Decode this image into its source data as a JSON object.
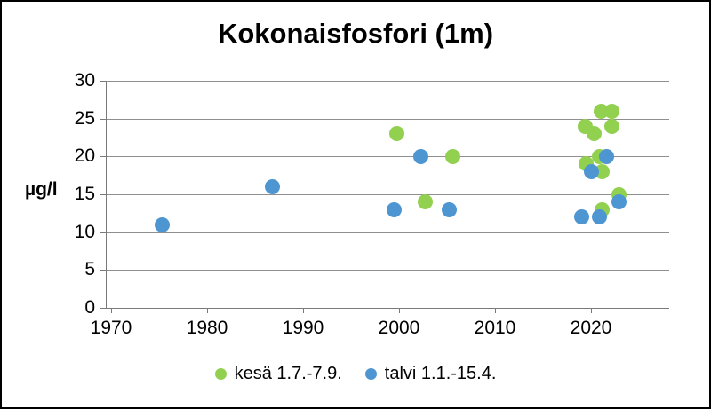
{
  "title": "Kokonaisfosfori (1m)",
  "y_axis": {
    "label": "µg/l",
    "ticks": [
      0,
      5,
      10,
      15,
      20,
      25,
      30
    ]
  },
  "x_axis": {
    "ticks": [
      1970,
      1980,
      1990,
      2000,
      2010,
      2020
    ]
  },
  "legend": {
    "items": [
      {
        "label": "kesä 1.7.-7.9.",
        "color": "#92D050"
      },
      {
        "label": "talvi 1.1.-15.4.",
        "color": "#4D96D2"
      }
    ]
  },
  "colors": {
    "grid": "#8f8f8f",
    "axis": "#7a7a7a",
    "text": "#000000",
    "background": "#ffffff",
    "border": "#000000"
  },
  "chart_data": {
    "type": "scatter",
    "title": "Kokonaisfosfori (1m)",
    "xlabel": "",
    "ylabel": "µg/l",
    "xlim": [
      1969.4,
      2028.7
    ],
    "ylim": [
      0,
      30
    ],
    "grid": true,
    "legend_position": "bottom",
    "marker_px": 17,
    "series": [
      {
        "name": "kesä 1.7.-7.9.",
        "color": "#92D050",
        "points": [
          [
            1999.8,
            23
          ],
          [
            2002.7,
            14
          ],
          [
            2005.6,
            20
          ],
          [
            2019.4,
            24
          ],
          [
            2019.5,
            19
          ],
          [
            2020.3,
            23
          ],
          [
            2020.9,
            20
          ],
          [
            2021.1,
            26
          ],
          [
            2021.2,
            18
          ],
          [
            2021.2,
            13
          ],
          [
            2022.2,
            26
          ],
          [
            2022.2,
            24
          ],
          [
            2022.9,
            15
          ]
        ]
      },
      {
        "name": "talvi 1.1.-15.4.",
        "color": "#4D96D2",
        "points": [
          [
            1975.3,
            11
          ],
          [
            1986.8,
            16
          ],
          [
            1999.5,
            13
          ],
          [
            2002.3,
            20
          ],
          [
            2005.2,
            13
          ],
          [
            2019.0,
            12
          ],
          [
            2020.0,
            18
          ],
          [
            2020.9,
            12
          ],
          [
            2021.6,
            20
          ],
          [
            2022.9,
            14
          ]
        ]
      }
    ]
  }
}
